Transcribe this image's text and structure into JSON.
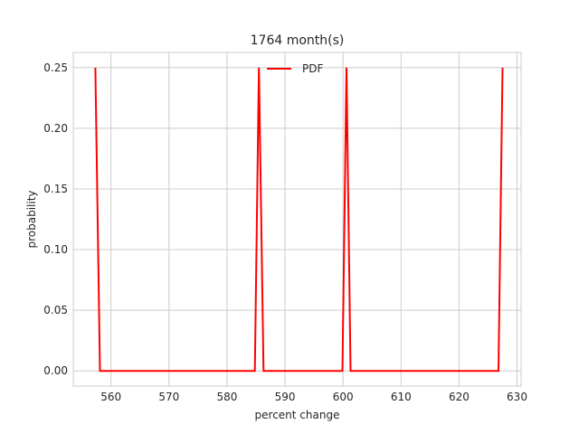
{
  "chart_data": {
    "type": "line",
    "title": "1764 month(s)",
    "xlabel": "percent change",
    "ylabel": "probability",
    "xlim": [
      553.5,
      630.7
    ],
    "ylim": [
      -0.0125,
      0.2625
    ],
    "xticks": [
      560,
      570,
      580,
      590,
      600,
      610,
      620,
      630
    ],
    "xtick_labels": [
      "560",
      "570",
      "580",
      "590",
      "600",
      "610",
      "620",
      "630"
    ],
    "yticks": [
      0.0,
      0.05,
      0.1,
      0.15,
      0.2,
      0.25
    ],
    "ytick_labels": [
      "0.00",
      "0.05",
      "0.10",
      "0.15",
      "0.20",
      "0.25"
    ],
    "grid": true,
    "legend_position": "upper center",
    "series": [
      {
        "name": "PDF",
        "color": "#ff0000",
        "x": [
          557.3,
          558.1,
          584.8,
          585.5,
          586.3,
          599.9,
          600.6,
          601.3,
          626.8,
          627.5
        ],
        "y": [
          0.25,
          0.0,
          0.0,
          0.25,
          0.0,
          0.0,
          0.25,
          0.0,
          0.0,
          0.25
        ]
      }
    ]
  }
}
